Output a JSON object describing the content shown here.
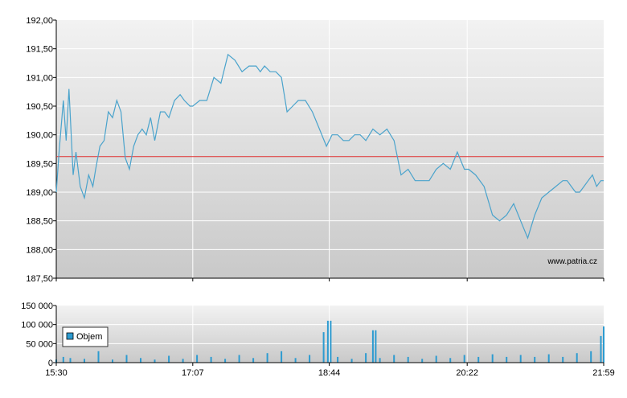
{
  "watermark": "www.patria.cz",
  "colors": {
    "price_line": "#4aa3cc",
    "reference_line": "#e03030",
    "volume_bar": "#2d9bd0",
    "grid": "#ffffff",
    "panel_top": "#f2f2f2",
    "panel_bottom": "#c9c9c9"
  },
  "chart_data": [
    {
      "type": "line",
      "title": "",
      "x_labels": [
        "15:30",
        "17:07",
        "18:44",
        "20:22",
        "21:59"
      ],
      "x_range": [
        "15:30",
        "21:59"
      ],
      "ylim": [
        187.5,
        192.0
      ],
      "y_ticks": [
        "192,00",
        "191,50",
        "191,00",
        "190,50",
        "190,00",
        "189,50",
        "189,00",
        "188,50",
        "188,00",
        "187,50"
      ],
      "reference_value": 189.62,
      "grid": true,
      "series": [
        {
          "x": [
            "15:30",
            "15:32",
            "15:35",
            "15:37",
            "15:39",
            "15:42",
            "15:44",
            "15:47",
            "15:50",
            "15:53",
            "15:56",
            "15:58",
            "16:01",
            "16:04",
            "16:07",
            "16:10",
            "16:13",
            "16:16",
            "16:19",
            "16:22",
            "16:25",
            "16:28",
            "16:31",
            "16:34",
            "16:37",
            "16:40",
            "16:44",
            "16:47",
            "16:50",
            "16:54",
            "16:58",
            "17:01",
            "17:05",
            "17:07",
            "17:12",
            "17:17",
            "17:22",
            "17:27",
            "17:32",
            "17:37",
            "17:42",
            "17:47",
            "17:52",
            "17:55",
            "17:58",
            "18:02",
            "18:06",
            "18:10",
            "18:14",
            "18:18",
            "18:22",
            "18:27",
            "18:32",
            "18:37",
            "18:42",
            "18:46",
            "18:50",
            "18:54",
            "18:58",
            "19:02",
            "19:06",
            "19:10",
            "19:15",
            "19:20",
            "19:25",
            "19:30",
            "19:35",
            "19:40",
            "19:45",
            "19:50",
            "19:55",
            "20:00",
            "20:05",
            "20:10",
            "20:15",
            "20:20",
            "20:23",
            "20:28",
            "20:34",
            "20:40",
            "20:45",
            "20:50",
            "20:55",
            "21:00",
            "21:05",
            "21:10",
            "21:15",
            "21:20",
            "21:25",
            "21:30",
            "21:33",
            "21:36",
            "21:39",
            "21:42",
            "21:45",
            "21:48",
            "21:51",
            "21:54",
            "21:57",
            "21:59"
          ],
          "values": [
            189.0,
            189.7,
            190.6,
            189.9,
            190.8,
            189.3,
            189.7,
            189.1,
            188.9,
            189.3,
            189.1,
            189.4,
            189.8,
            189.9,
            190.4,
            190.3,
            190.6,
            190.4,
            189.6,
            189.4,
            189.8,
            190.0,
            190.1,
            190.0,
            190.3,
            189.9,
            190.4,
            190.4,
            190.3,
            190.6,
            190.7,
            190.6,
            190.5,
            190.5,
            190.6,
            190.6,
            191.0,
            190.9,
            191.4,
            191.3,
            191.1,
            191.2,
            191.2,
            191.1,
            191.2,
            191.1,
            191.1,
            191.0,
            190.4,
            190.5,
            190.6,
            190.6,
            190.4,
            190.1,
            189.8,
            190.0,
            190.0,
            189.9,
            189.9,
            190.0,
            190.0,
            189.9,
            190.1,
            190.0,
            190.1,
            189.9,
            189.3,
            189.4,
            189.2,
            189.2,
            189.2,
            189.4,
            189.5,
            189.4,
            189.7,
            189.4,
            189.4,
            189.3,
            189.1,
            188.6,
            188.5,
            188.6,
            188.8,
            188.5,
            188.2,
            188.6,
            188.9,
            189.0,
            189.1,
            189.2,
            189.2,
            189.1,
            189.0,
            189.0,
            189.1,
            189.2,
            189.3,
            189.1,
            189.2,
            189.2
          ]
        }
      ]
    },
    {
      "type": "bar",
      "title": "",
      "legend": [
        "Objem"
      ],
      "legend_position": "top-left",
      "x_labels": [
        "15:30",
        "17:07",
        "18:44",
        "20:22",
        "21:59"
      ],
      "ylim": [
        0,
        150000
      ],
      "y_ticks": [
        "150 000",
        "100 000",
        "50 000",
        "0"
      ],
      "grid": true,
      "series": [
        {
          "name": "Objem",
          "x": [
            "15:30",
            "15:35",
            "15:40",
            "15:50",
            "16:00",
            "16:10",
            "16:20",
            "16:30",
            "16:40",
            "16:50",
            "17:00",
            "17:10",
            "17:20",
            "17:30",
            "17:40",
            "17:50",
            "18:00",
            "18:10",
            "18:20",
            "18:30",
            "18:40",
            "18:43",
            "18:45",
            "18:50",
            "19:00",
            "19:10",
            "19:15",
            "19:17",
            "19:20",
            "19:30",
            "19:40",
            "19:50",
            "20:00",
            "20:10",
            "20:20",
            "20:30",
            "20:40",
            "20:50",
            "21:00",
            "21:10",
            "21:20",
            "21:30",
            "21:40",
            "21:50",
            "21:57",
            "21:59"
          ],
          "values": [
            8000,
            15000,
            12000,
            10000,
            30000,
            8000,
            20000,
            12000,
            8000,
            18000,
            10000,
            20000,
            15000,
            10000,
            20000,
            12000,
            25000,
            30000,
            12000,
            20000,
            80000,
            110000,
            110000,
            15000,
            10000,
            25000,
            85000,
            85000,
            12000,
            20000,
            15000,
            10000,
            18000,
            12000,
            20000,
            15000,
            22000,
            15000,
            20000,
            15000,
            22000,
            15000,
            25000,
            30000,
            70000,
            95000
          ]
        }
      ]
    }
  ]
}
